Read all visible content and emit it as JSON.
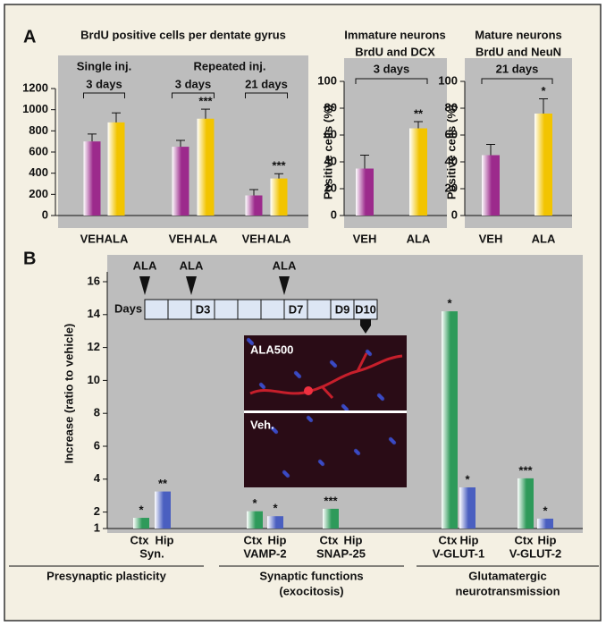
{
  "panel_labels": [
    "A",
    "B"
  ],
  "chart_data": [
    {
      "type": "bar",
      "title": [
        "BrdU positive cells per dentate gyrus"
      ],
      "groups": [
        {
          "label": "Single inj.",
          "subgroups": [
            {
              "label": "3 days",
              "categories": [
                "VEH",
                "ALA"
              ]
            }
          ]
        },
        {
          "label": "Repeated inj.",
          "subgroups": [
            {
              "label": "3 days",
              "categories": [
                "VEH",
                "ALA"
              ]
            },
            {
              "label": "21 days",
              "categories": [
                "VEH",
                "ALA"
              ]
            }
          ]
        }
      ],
      "values": [
        700,
        880,
        650,
        915,
        190,
        350
      ],
      "errors": [
        70,
        90,
        60,
        90,
        55,
        45
      ],
      "significance": [
        null,
        null,
        null,
        "***",
        null,
        "***"
      ],
      "colors": [
        "#9c2a8c",
        "#f2c400",
        "#9c2a8c",
        "#f2c400",
        "#9c2a8c",
        "#f2c400"
      ],
      "ylim": [
        0,
        1200
      ],
      "yticks": [
        0,
        200,
        400,
        600,
        800,
        1000,
        1200
      ]
    },
    {
      "type": "bar",
      "title": [
        "Immature neurons",
        "BrdU and DCX"
      ],
      "ylabel": "Positive cells (%)",
      "groups": [
        {
          "subgroups": [
            {
              "label": "3 days",
              "categories": [
                "VEH",
                "ALA"
              ]
            }
          ]
        }
      ],
      "values": [
        35,
        65
      ],
      "errors": [
        10,
        5
      ],
      "significance": [
        null,
        "**"
      ],
      "colors": [
        "#9c2a8c",
        "#f2c400"
      ],
      "ylim": [
        0,
        100
      ],
      "yticks": [
        0,
        20,
        40,
        60,
        80,
        100
      ]
    },
    {
      "type": "bar",
      "title": [
        "Mature neurons",
        "BrdU and NeuN"
      ],
      "ylabel": "Positive cells (%)",
      "groups": [
        {
          "subgroups": [
            {
              "label": "21 days",
              "categories": [
                "VEH",
                "ALA"
              ]
            }
          ]
        }
      ],
      "values": [
        45,
        76
      ],
      "errors": [
        8,
        11
      ],
      "significance": [
        null,
        "*"
      ],
      "colors": [
        "#9c2a8c",
        "#f2c400"
      ],
      "ylim": [
        0,
        100
      ],
      "yticks": [
        0,
        20,
        40,
        60,
        80,
        100
      ]
    },
    {
      "type": "grouped_bar",
      "ylabel": "Increase (ratio to vehicle)",
      "groups": [
        {
          "label": [
            "Presynaptic plasticity"
          ],
          "categories": [
            "Syn."
          ]
        },
        {
          "label": [
            "Synaptic functions",
            "(exocitosis)"
          ],
          "categories": [
            "VAMP-2",
            "SNAP-25"
          ]
        },
        {
          "label": [
            "Glutamatergic",
            "neurotransmission"
          ],
          "categories": [
            "V-GLUT-1",
            "V-GLUT-2"
          ]
        }
      ],
      "series": [
        {
          "name": "Ctx",
          "color": "#2e9a5a",
          "values": [
            1.65,
            2.05,
            2.2,
            14.2,
            4.05
          ],
          "significance": [
            "*",
            "*",
            "***",
            "*",
            "***"
          ]
        },
        {
          "name": "Hip",
          "color": "#4a5fc0",
          "values": [
            3.25,
            1.75,
            null,
            3.5,
            1.6
          ],
          "significance": [
            "**",
            "*",
            null,
            "*",
            "*"
          ]
        }
      ],
      "ylim": [
        1,
        16.6
      ],
      "yticks": [
        1,
        2,
        4,
        6,
        8,
        10,
        12,
        14,
        16
      ],
      "timeline": {
        "label": "Days",
        "days": [
          {
            "marker": "ALA"
          },
          {},
          {
            "label": "D3",
            "marker": "ALA"
          },
          {},
          {},
          {},
          {
            "label": "D7",
            "marker": "ALA"
          },
          {},
          {
            "label": "D9"
          },
          {
            "label": "D10"
          }
        ]
      },
      "inset_labels": [
        "ALA500",
        "Veh."
      ]
    }
  ]
}
